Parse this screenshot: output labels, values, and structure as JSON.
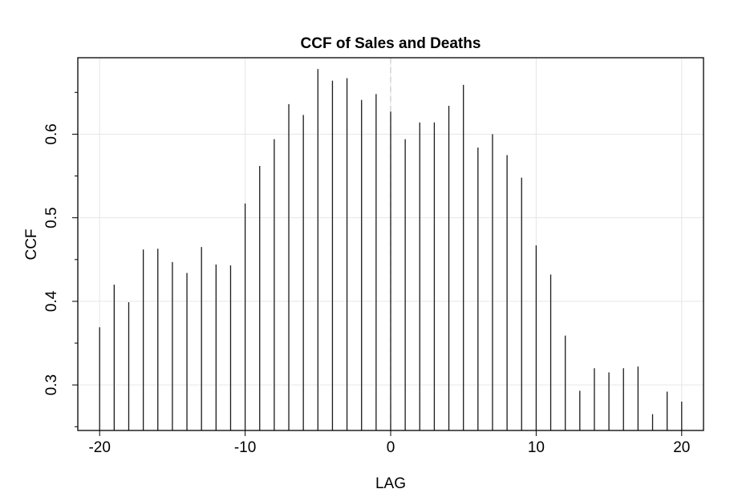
{
  "chart_data": {
    "type": "bar",
    "title": "CCF of Sales and Deaths",
    "xlabel": "LAG",
    "ylabel": "CCF",
    "x": [
      -20,
      -19,
      -18,
      -17,
      -16,
      -15,
      -14,
      -13,
      -12,
      -11,
      -10,
      -9,
      -8,
      -7,
      -6,
      -5,
      -4,
      -3,
      -2,
      -1,
      0,
      1,
      2,
      3,
      4,
      5,
      6,
      7,
      8,
      9,
      10,
      11,
      12,
      13,
      14,
      15,
      16,
      17,
      18,
      19,
      20
    ],
    "values": [
      0.369,
      0.42,
      0.399,
      0.462,
      0.463,
      0.447,
      0.434,
      0.465,
      0.444,
      0.443,
      0.517,
      0.562,
      0.594,
      0.636,
      0.623,
      0.678,
      0.664,
      0.667,
      0.641,
      0.648,
      0.627,
      0.594,
      0.614,
      0.614,
      0.634,
      0.659,
      0.584,
      0.6,
      0.575,
      0.548,
      0.467,
      0.432,
      0.359,
      0.293,
      0.32,
      0.315,
      0.32,
      0.322,
      0.265,
      0.292,
      0.28
    ],
    "xlim": [
      -21.5,
      21.5
    ],
    "ylim": [
      0.2455,
      0.6915
    ],
    "baseline": 0.2455,
    "x_ticks": [
      -20,
      -10,
      0,
      10,
      20
    ],
    "x_tick_labels": [
      "-20",
      "-10",
      "0",
      "10",
      "20"
    ],
    "y_ticks": [
      0.3,
      0.4,
      0.5,
      0.6
    ],
    "y_tick_labels": [
      "0.3",
      "0.4",
      "0.5",
      "0.6"
    ],
    "y_minor_ticks": [
      0.25,
      0.35,
      0.45,
      0.55,
      0.65
    ],
    "grid": true,
    "zero_lag_line": true,
    "colors": {
      "bars": "#1a1a1a",
      "grid": "#e6e6e6",
      "zero_line": "#c8c8c8"
    }
  }
}
